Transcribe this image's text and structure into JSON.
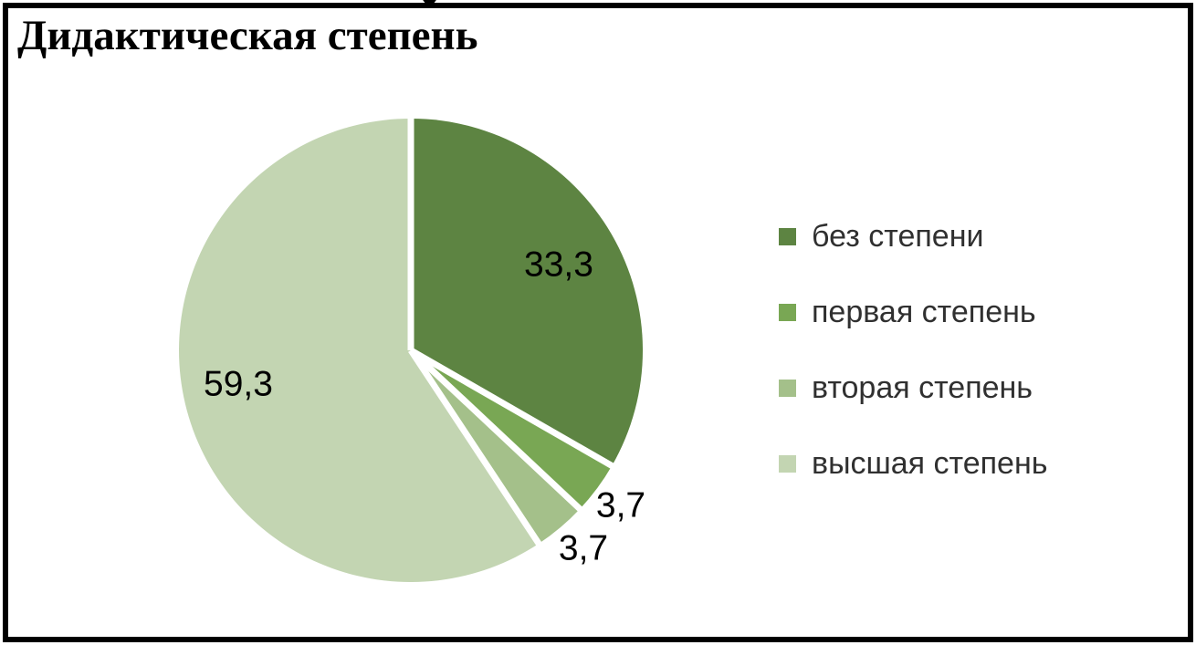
{
  "window": {
    "background_color": "#ffffff",
    "frame_border_color": "#000000"
  },
  "chart_data": {
    "type": "pie",
    "title": "Дидактическая степень",
    "unit": "percent",
    "decimal_separator": ",",
    "start_angle_deg": 0,
    "direction": "clockwise",
    "legend_position": "right",
    "data_label_color": "#000000",
    "legend_text_color": "#303030",
    "separator_color": "#ffffff",
    "slices": [
      {
        "label": "без степени",
        "value": 33.3,
        "display": "33,3",
        "color": "#5d8442"
      },
      {
        "label": "первая степень",
        "value": 3.7,
        "display": "3,7",
        "color": "#79a754"
      },
      {
        "label": "вторая степень",
        "value": 3.7,
        "display": "3,7",
        "color": "#a4c08a"
      },
      {
        "label": "высшая степень",
        "value": 59.3,
        "display": "59,3",
        "color": "#c3d5b2"
      }
    ]
  }
}
